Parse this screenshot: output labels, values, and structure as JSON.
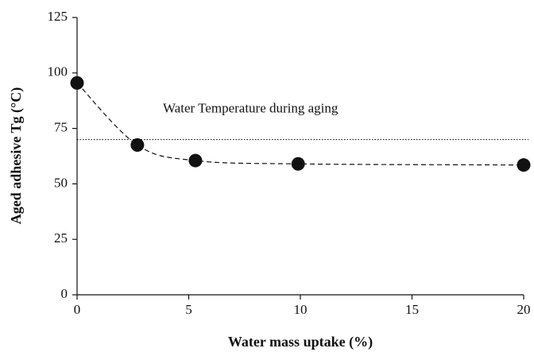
{
  "chart_data": {
    "type": "scatter",
    "xlabel": "Water mass uptake (%)",
    "ylabel": "Aged adhesive Tg (°C)",
    "x": [
      0,
      2.7,
      5.3,
      9.9,
      20
    ],
    "series": [
      {
        "values": [
          95.5,
          67.5,
          60.5,
          59,
          58.5
        ],
        "color": "#111111"
      }
    ],
    "xlim": [
      0,
      20
    ],
    "xticks": [
      0,
      5,
      10,
      15,
      20
    ],
    "ylim": [
      0,
      125
    ],
    "yticks": [
      0,
      25,
      50,
      75,
      100,
      125
    ],
    "reference_line": {
      "value": 70,
      "label": "Water Temperature during aging"
    }
  }
}
